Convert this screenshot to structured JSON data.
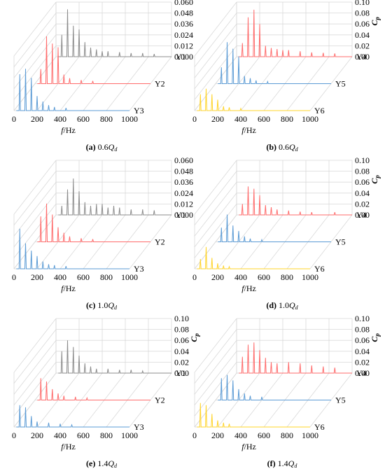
{
  "panels": [
    {
      "caption_prefix": "(a)",
      "caption_value": "0.6",
      "caption_q": "Q",
      "caption_sub": "d",
      "depth_ticks": [
        "0.060",
        "0.048",
        "0.036",
        "0.024",
        "0.012",
        "0.000"
      ],
      "x_ticks": [
        "0",
        "200",
        "400",
        "600",
        "800",
        "1000"
      ],
      "x_label_f": "f",
      "x_label_unit": "/Hz",
      "cp_label": "",
      "series_labels": [
        "Y1",
        "Y2",
        "Y3"
      ]
    },
    {
      "caption_prefix": "(b)",
      "caption_value": "0.6",
      "caption_q": "Q",
      "caption_sub": "d",
      "depth_ticks": [
        "0.10",
        "0.08",
        "0.06",
        "0.04",
        "0.02",
        "0.00"
      ],
      "x_ticks": [
        "0",
        "200",
        "400",
        "600",
        "800",
        "1000"
      ],
      "x_label_f": "f",
      "x_label_unit": "/Hz",
      "cp_label": "C",
      "cp_sub": "p",
      "series_labels": [
        "Y4",
        "Y5",
        "Y6"
      ]
    },
    {
      "caption_prefix": "(c)",
      "caption_value": "1.0",
      "caption_q": "Q",
      "caption_sub": "d",
      "depth_ticks": [
        "0.060",
        "0.048",
        "0.036",
        "0.024",
        "0.012",
        "0.000"
      ],
      "x_ticks": [
        "0",
        "200",
        "400",
        "600",
        "800",
        "1000"
      ],
      "x_label_f": "f",
      "x_label_unit": "/Hz",
      "cp_label": "",
      "series_labels": [
        "Y1",
        "Y2",
        "Y3"
      ]
    },
    {
      "caption_prefix": "(d)",
      "caption_value": "1.0",
      "caption_q": "Q",
      "caption_sub": "d",
      "depth_ticks": [
        "0.10",
        "0.08",
        "0.06",
        "0.04",
        "0.02",
        "0.00"
      ],
      "x_ticks": [
        "0",
        "200",
        "400",
        "600",
        "800",
        "1000"
      ],
      "x_label_f": "f",
      "x_label_unit": "/Hz",
      "cp_label": "C",
      "cp_sub": "p",
      "series_labels": [
        "Y4",
        "Y5",
        "Y6"
      ]
    },
    {
      "caption_prefix": "(e)",
      "caption_value": "1.4",
      "caption_q": "Q",
      "caption_sub": "d",
      "depth_ticks": [
        "0.10",
        "0.08",
        "0.06",
        "0.04",
        "0.02",
        "0.00"
      ],
      "x_ticks": [
        "0",
        "200",
        "400",
        "600",
        "800",
        "1000"
      ],
      "x_label_f": "f",
      "x_label_unit": "/Hz",
      "cp_label": "C",
      "cp_sub": "p",
      "series_labels": [
        "Y1",
        "Y2",
        "Y3"
      ]
    },
    {
      "caption_prefix": "(f)",
      "caption_value": "1.4",
      "caption_q": "Q",
      "caption_sub": "d",
      "depth_ticks": [
        "0.10",
        "0.08",
        "0.06",
        "0.04",
        "0.02",
        "0.00"
      ],
      "x_ticks": [
        "0",
        "200",
        "400",
        "600",
        "800",
        "1000"
      ],
      "x_label_f": "f",
      "x_label_unit": "/Hz",
      "cp_label": "C",
      "cp_sub": "p",
      "series_labels": [
        "Y4",
        "Y5",
        "Y6"
      ]
    }
  ],
  "colors": {
    "grid": "#d9d9d9",
    "axis": "#808080",
    "series": [
      "#8c8c8c",
      "#ff6b6b",
      "#5b9bd5"
    ],
    "series_b": [
      "#ff6b6b",
      "#5b9bd5",
      "#ffd42a"
    ]
  },
  "chart_data": [
    {
      "type": "line",
      "title": "(a) 0.6Qd",
      "x_axis": "f/Hz",
      "xlim": [
        0,
        1000
      ],
      "zlim": [
        0,
        0.06
      ],
      "series": [
        {
          "name": "Y1",
          "peaks": [
            [
              50,
              0.024
            ],
            [
              100,
              0.052
            ],
            [
              150,
              0.034
            ],
            [
              200,
              0.03
            ],
            [
              250,
              0.016
            ],
            [
              300,
              0.01
            ],
            [
              350,
              0.008
            ],
            [
              400,
              0.006
            ],
            [
              450,
              0.006
            ],
            [
              550,
              0.005
            ],
            [
              650,
              0.004
            ],
            [
              750,
              0.004
            ],
            [
              850,
              0.003
            ]
          ]
        },
        {
          "name": "Y2",
          "peaks": [
            [
              50,
              0.016
            ],
            [
              100,
              0.052
            ],
            [
              150,
              0.044
            ],
            [
              200,
              0.04
            ],
            [
              250,
              0.01
            ],
            [
              300,
              0.006
            ],
            [
              400,
              0.004
            ],
            [
              500,
              0.003
            ]
          ]
        },
        {
          "name": "Y3",
          "peaks": [
            [
              50,
              0.04
            ],
            [
              100,
              0.046
            ],
            [
              150,
              0.036
            ],
            [
              200,
              0.016
            ],
            [
              250,
              0.01
            ],
            [
              300,
              0.006
            ],
            [
              350,
              0.004
            ],
            [
              450,
              0.003
            ]
          ]
        }
      ]
    },
    {
      "type": "line",
      "title": "(b) 0.6Qd",
      "x_axis": "f/Hz",
      "y_axis": "Cp",
      "xlim": [
        0,
        1000
      ],
      "zlim": [
        0,
        0.1
      ],
      "series": [
        {
          "name": "Y4",
          "peaks": [
            [
              50,
              0.025
            ],
            [
              100,
              0.072
            ],
            [
              150,
              0.086
            ],
            [
              200,
              0.06
            ],
            [
              250,
              0.02
            ],
            [
              300,
              0.016
            ],
            [
              350,
              0.014
            ],
            [
              400,
              0.012
            ],
            [
              450,
              0.012
            ],
            [
              550,
              0.01
            ],
            [
              650,
              0.008
            ],
            [
              750,
              0.007
            ],
            [
              850,
              0.006
            ]
          ]
        },
        {
          "name": "Y5",
          "peaks": [
            [
              50,
              0.03
            ],
            [
              100,
              0.076
            ],
            [
              150,
              0.064
            ],
            [
              200,
              0.05
            ],
            [
              250,
              0.014
            ],
            [
              300,
              0.01
            ],
            [
              350,
              0.006
            ],
            [
              450,
              0.004
            ]
          ]
        },
        {
          "name": "Y6",
          "peaks": [
            [
              50,
              0.03
            ],
            [
              100,
              0.04
            ],
            [
              150,
              0.03
            ],
            [
              200,
              0.02
            ],
            [
              250,
              0.008
            ],
            [
              300,
              0.006
            ],
            [
              400,
              0.004
            ]
          ]
        }
      ]
    },
    {
      "type": "line",
      "title": "(c) 1.0Qd",
      "x_axis": "f/Hz",
      "xlim": [
        0,
        1000
      ],
      "zlim": [
        0,
        0.06
      ],
      "series": [
        {
          "name": "Y1",
          "peaks": [
            [
              50,
              0.01
            ],
            [
              100,
              0.028
            ],
            [
              150,
              0.04
            ],
            [
              200,
              0.026
            ],
            [
              250,
              0.014
            ],
            [
              300,
              0.01
            ],
            [
              350,
              0.012
            ],
            [
              400,
              0.012
            ],
            [
              450,
              0.008
            ],
            [
              500,
              0.01
            ],
            [
              550,
              0.008
            ],
            [
              650,
              0.006
            ],
            [
              750,
              0.006
            ],
            [
              850,
              0.005
            ]
          ]
        },
        {
          "name": "Y2",
          "peaks": [
            [
              50,
              0.028
            ],
            [
              100,
              0.042
            ],
            [
              150,
              0.03
            ],
            [
              200,
              0.016
            ],
            [
              250,
              0.01
            ],
            [
              300,
              0.006
            ],
            [
              400,
              0.004
            ],
            [
              500,
              0.003
            ]
          ]
        },
        {
          "name": "Y3",
          "peaks": [
            [
              50,
              0.044
            ],
            [
              100,
              0.028
            ],
            [
              150,
              0.02
            ],
            [
              200,
              0.014
            ],
            [
              250,
              0.008
            ],
            [
              300,
              0.005
            ],
            [
              350,
              0.004
            ],
            [
              450,
              0.003
            ]
          ]
        }
      ]
    },
    {
      "type": "line",
      "title": "(d) 1.0Qd",
      "x_axis": "f/Hz",
      "y_axis": "Cp",
      "xlim": [
        0,
        1000
      ],
      "zlim": [
        0,
        0.1
      ],
      "series": [
        {
          "name": "Y4",
          "peaks": [
            [
              50,
              0.02
            ],
            [
              100,
              0.052
            ],
            [
              150,
              0.048
            ],
            [
              200,
              0.036
            ],
            [
              250,
              0.018
            ],
            [
              300,
              0.014
            ],
            [
              350,
              0.01
            ],
            [
              450,
              0.008
            ],
            [
              550,
              0.006
            ],
            [
              650,
              0.005
            ],
            [
              850,
              0.005
            ]
          ]
        },
        {
          "name": "Y5",
          "peaks": [
            [
              50,
              0.026
            ],
            [
              100,
              0.05
            ],
            [
              150,
              0.03
            ],
            [
              200,
              0.02
            ],
            [
              250,
              0.01
            ],
            [
              300,
              0.006
            ],
            [
              400,
              0.004
            ]
          ]
        },
        {
          "name": "Y6",
          "peaks": [
            [
              50,
              0.018
            ],
            [
              100,
              0.04
            ],
            [
              150,
              0.02
            ],
            [
              200,
              0.01
            ],
            [
              250,
              0.006
            ],
            [
              300,
              0.004
            ]
          ]
        }
      ]
    },
    {
      "type": "line",
      "title": "(e) 1.4Qd",
      "x_axis": "f/Hz",
      "y_axis": "Cp",
      "xlim": [
        0,
        1000
      ],
      "zlim": [
        0,
        0.1
      ],
      "series": [
        {
          "name": "Y1",
          "peaks": [
            [
              50,
              0.04
            ],
            [
              100,
              0.06
            ],
            [
              150,
              0.048
            ],
            [
              200,
              0.032
            ],
            [
              250,
              0.018
            ],
            [
              300,
              0.012
            ],
            [
              350,
              0.008
            ],
            [
              450,
              0.008
            ],
            [
              550,
              0.006
            ],
            [
              650,
              0.006
            ],
            [
              750,
              0.004
            ]
          ]
        },
        {
          "name": "Y2",
          "peaks": [
            [
              50,
              0.04
            ],
            [
              100,
              0.034
            ],
            [
              150,
              0.02
            ],
            [
              200,
              0.012
            ],
            [
              250,
              0.008
            ],
            [
              350,
              0.006
            ],
            [
              450,
              0.004
            ]
          ]
        },
        {
          "name": "Y3",
          "peaks": [
            [
              50,
              0.04
            ],
            [
              100,
              0.036
            ],
            [
              150,
              0.02
            ],
            [
              200,
              0.01
            ],
            [
              300,
              0.008
            ],
            [
              400,
              0.006
            ],
            [
              500,
              0.004
            ]
          ]
        }
      ]
    },
    {
      "type": "line",
      "title": "(f) 1.4Qd",
      "x_axis": "f/Hz",
      "y_axis": "Cp",
      "xlim": [
        0,
        1000
      ],
      "zlim": [
        0,
        0.1
      ],
      "series": [
        {
          "name": "Y4",
          "peaks": [
            [
              50,
              0.03
            ],
            [
              100,
              0.052
            ],
            [
              150,
              0.056
            ],
            [
              200,
              0.042
            ],
            [
              250,
              0.028
            ],
            [
              300,
              0.02
            ],
            [
              350,
              0.018
            ],
            [
              450,
              0.02
            ],
            [
              550,
              0.018
            ],
            [
              650,
              0.014
            ],
            [
              750,
              0.012
            ],
            [
              850,
              0.01
            ]
          ]
        },
        {
          "name": "Y5",
          "peaks": [
            [
              50,
              0.04
            ],
            [
              100,
              0.046
            ],
            [
              150,
              0.036
            ],
            [
              200,
              0.02
            ],
            [
              250,
              0.012
            ],
            [
              300,
              0.008
            ],
            [
              400,
              0.006
            ]
          ]
        },
        {
          "name": "Y6",
          "peaks": [
            [
              50,
              0.044
            ],
            [
              100,
              0.04
            ],
            [
              150,
              0.024
            ],
            [
              200,
              0.012
            ],
            [
              250,
              0.008
            ],
            [
              300,
              0.006
            ]
          ]
        }
      ]
    }
  ]
}
